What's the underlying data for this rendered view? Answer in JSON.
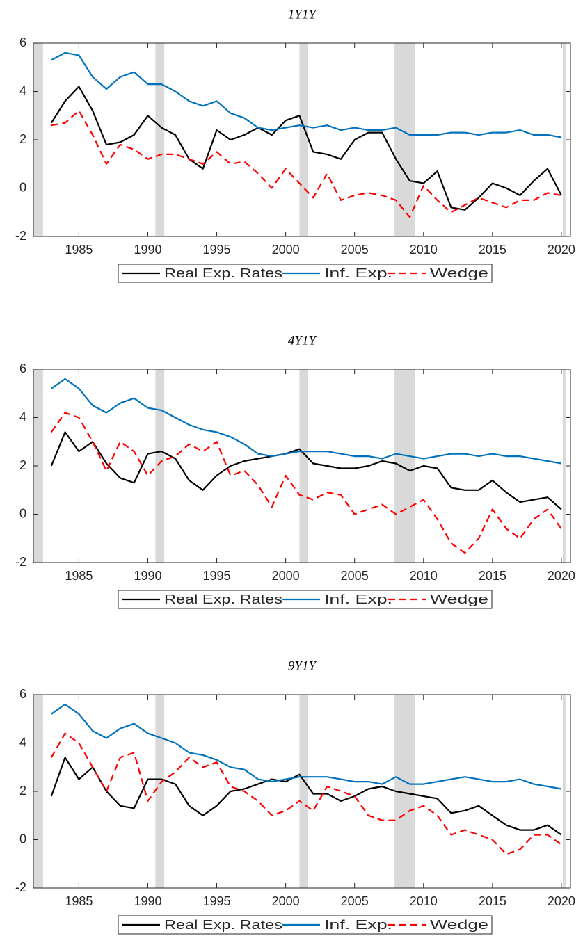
{
  "chart_data": [
    {
      "type": "line",
      "title": "1Y1Y",
      "x": [
        1983,
        1984,
        1985,
        1986,
        1987,
        1988,
        1989,
        1990,
        1991,
        1992,
        1993,
        1994,
        1995,
        1996,
        1997,
        1998,
        1999,
        2000,
        2001,
        2002,
        2003,
        2004,
        2005,
        2006,
        2007,
        2008,
        2009,
        2010,
        2011,
        2012,
        2013,
        2014,
        2015,
        2016,
        2017,
        2018,
        2019,
        2020
      ],
      "series": [
        {
          "name": "Real Exp. Rates",
          "color": "#000000",
          "line_style": "solid",
          "values": [
            2.7,
            3.6,
            4.2,
            3.2,
            1.8,
            1.9,
            2.2,
            3.0,
            2.5,
            2.2,
            1.2,
            0.8,
            2.4,
            2.0,
            2.2,
            2.5,
            2.2,
            2.8,
            3.0,
            1.5,
            1.4,
            1.2,
            2.0,
            2.3,
            2.3,
            1.2,
            0.3,
            0.2,
            0.7,
            -0.8,
            -0.9,
            -0.4,
            0.2,
            0.0,
            -0.3,
            0.3,
            0.8,
            -0.3
          ]
        },
        {
          "name": "Inf. Exp.",
          "color": "#0072bd",
          "line_style": "solid",
          "values": [
            5.3,
            5.6,
            5.5,
            4.6,
            4.1,
            4.6,
            4.8,
            4.3,
            4.3,
            4.0,
            3.6,
            3.4,
            3.6,
            3.1,
            2.9,
            2.5,
            2.4,
            2.5,
            2.6,
            2.5,
            2.6,
            2.4,
            2.5,
            2.4,
            2.4,
            2.5,
            2.2,
            2.2,
            2.2,
            2.3,
            2.3,
            2.2,
            2.3,
            2.3,
            2.4,
            2.2,
            2.2,
            2.1
          ]
        },
        {
          "name": "Wedge",
          "color": "#ff0000",
          "line_style": "dashed",
          "values": [
            2.6,
            2.7,
            3.2,
            2.2,
            1.0,
            1.8,
            1.6,
            1.2,
            1.4,
            1.4,
            1.2,
            1.0,
            1.5,
            1.0,
            1.1,
            0.6,
            0.0,
            0.8,
            0.2,
            -0.4,
            0.6,
            -0.5,
            -0.3,
            -0.2,
            -0.3,
            -0.5,
            -1.2,
            0.1,
            -0.5,
            -1.0,
            -0.7,
            -0.4,
            -0.6,
            -0.8,
            -0.5,
            -0.5,
            -0.2,
            -0.3
          ]
        }
      ],
      "shaded_periods": [
        [
          1981.7,
          1982.4
        ],
        [
          1990.55,
          1991.2
        ],
        [
          2001.0,
          2001.6
        ],
        [
          2007.9,
          2009.4
        ],
        [
          2020.1,
          2020.3
        ]
      ],
      "xlim": [
        1981.7,
        2020.66
      ],
      "xticks": [
        1985,
        1990,
        1995,
        2000,
        2005,
        2010,
        2015,
        2020
      ],
      "ylim": [
        -2,
        6
      ],
      "yticks": [
        -2,
        0,
        2,
        4,
        6
      ],
      "legend": "bottom"
    },
    {
      "type": "line",
      "title": "4Y1Y",
      "x": [
        1983,
        1984,
        1985,
        1986,
        1987,
        1988,
        1989,
        1990,
        1991,
        1992,
        1993,
        1994,
        1995,
        1996,
        1997,
        1998,
        1999,
        2000,
        2001,
        2002,
        2003,
        2004,
        2005,
        2006,
        2007,
        2008,
        2009,
        2010,
        2011,
        2012,
        2013,
        2014,
        2015,
        2016,
        2017,
        2018,
        2019,
        2020
      ],
      "series": [
        {
          "name": "Real Exp. Rates",
          "color": "#000000",
          "line_style": "solid",
          "values": [
            2.0,
            3.4,
            2.6,
            3.0,
            2.1,
            1.5,
            1.3,
            2.5,
            2.6,
            2.3,
            1.4,
            1.0,
            1.6,
            2.0,
            2.2,
            2.3,
            2.4,
            2.5,
            2.7,
            2.1,
            2.0,
            1.9,
            1.9,
            2.0,
            2.2,
            2.1,
            1.8,
            2.0,
            1.9,
            1.1,
            1.0,
            1.0,
            1.4,
            0.9,
            0.5,
            0.6,
            0.7,
            0.2
          ]
        },
        {
          "name": "Inf. Exp.",
          "color": "#0072bd",
          "line_style": "solid",
          "values": [
            5.2,
            5.6,
            5.2,
            4.5,
            4.2,
            4.6,
            4.8,
            4.4,
            4.3,
            4.0,
            3.7,
            3.5,
            3.4,
            3.2,
            2.9,
            2.5,
            2.4,
            2.5,
            2.6,
            2.6,
            2.6,
            2.5,
            2.4,
            2.4,
            2.3,
            2.5,
            2.4,
            2.3,
            2.4,
            2.5,
            2.5,
            2.4,
            2.5,
            2.4,
            2.4,
            2.3,
            2.2,
            2.1
          ]
        },
        {
          "name": "Wedge",
          "color": "#ff0000",
          "line_style": "dashed",
          "values": [
            3.4,
            4.2,
            4.0,
            3.0,
            1.8,
            3.0,
            2.6,
            1.6,
            2.2,
            2.4,
            2.9,
            2.6,
            3.0,
            1.6,
            1.8,
            1.2,
            0.3,
            1.6,
            0.8,
            0.6,
            0.9,
            0.8,
            0.0,
            0.2,
            0.4,
            0.0,
            0.3,
            0.6,
            -0.2,
            -1.2,
            -1.6,
            -1.0,
            0.2,
            -0.6,
            -1.0,
            -0.2,
            0.2,
            -0.6
          ]
        }
      ],
      "shaded_periods": [
        [
          1981.7,
          1982.4
        ],
        [
          1990.55,
          1991.2
        ],
        [
          2001.0,
          2001.6
        ],
        [
          2007.9,
          2009.4
        ],
        [
          2020.1,
          2020.3
        ]
      ],
      "xlim": [
        1981.7,
        2020.66
      ],
      "xticks": [
        1985,
        1990,
        1995,
        2000,
        2005,
        2010,
        2015,
        2020
      ],
      "ylim": [
        -2,
        6
      ],
      "yticks": [
        -2,
        0,
        2,
        4,
        6
      ],
      "legend": "bottom"
    },
    {
      "type": "line",
      "title": "9Y1Y",
      "x": [
        1983,
        1984,
        1985,
        1986,
        1987,
        1988,
        1989,
        1990,
        1991,
        1992,
        1993,
        1994,
        1995,
        1996,
        1997,
        1998,
        1999,
        2000,
        2001,
        2002,
        2003,
        2004,
        2005,
        2006,
        2007,
        2008,
        2009,
        2010,
        2011,
        2012,
        2013,
        2014,
        2015,
        2016,
        2017,
        2018,
        2019,
        2020
      ],
      "series": [
        {
          "name": "Real Exp. Rates",
          "color": "#000000",
          "line_style": "solid",
          "values": [
            1.8,
            3.4,
            2.5,
            3.0,
            2.0,
            1.4,
            1.3,
            2.5,
            2.5,
            2.3,
            1.4,
            1.0,
            1.4,
            2.0,
            2.1,
            2.3,
            2.5,
            2.4,
            2.7,
            1.9,
            1.9,
            1.6,
            1.8,
            2.1,
            2.2,
            2.0,
            1.9,
            1.8,
            1.7,
            1.1,
            1.2,
            1.4,
            1.0,
            0.6,
            0.4,
            0.4,
            0.6,
            0.2
          ]
        },
        {
          "name": "Inf. Exp.",
          "color": "#0072bd",
          "line_style": "solid",
          "values": [
            5.2,
            5.6,
            5.2,
            4.5,
            4.2,
            4.6,
            4.8,
            4.4,
            4.2,
            4.0,
            3.6,
            3.5,
            3.3,
            3.0,
            2.9,
            2.5,
            2.4,
            2.5,
            2.6,
            2.6,
            2.6,
            2.5,
            2.4,
            2.4,
            2.3,
            2.6,
            2.3,
            2.3,
            2.4,
            2.5,
            2.6,
            2.5,
            2.4,
            2.4,
            2.5,
            2.3,
            2.2,
            2.1
          ]
        },
        {
          "name": "Wedge",
          "color": "#ff0000",
          "line_style": "dashed",
          "values": [
            3.4,
            4.4,
            4.0,
            3.0,
            2.0,
            3.4,
            3.6,
            1.6,
            2.4,
            2.8,
            3.4,
            3.0,
            3.2,
            2.2,
            2.0,
            1.6,
            1.0,
            1.2,
            1.6,
            1.2,
            2.2,
            2.0,
            1.8,
            1.0,
            0.8,
            0.8,
            1.2,
            1.4,
            1.0,
            0.2,
            0.4,
            0.2,
            0.0,
            -0.6,
            -0.4,
            0.2,
            0.2,
            -0.2
          ]
        }
      ],
      "shaded_periods": [
        [
          1981.7,
          1982.4
        ],
        [
          1990.55,
          1991.2
        ],
        [
          2001.0,
          2001.6
        ],
        [
          2007.9,
          2009.4
        ],
        [
          2020.1,
          2020.3
        ]
      ],
      "xlim": [
        1981.7,
        2020.66
      ],
      "xticks": [
        1985,
        1990,
        1995,
        2000,
        2005,
        2010,
        2015,
        2020
      ],
      "ylim": [
        -2,
        6
      ],
      "yticks": [
        -2,
        0,
        2,
        4,
        6
      ],
      "legend": "bottom"
    }
  ]
}
